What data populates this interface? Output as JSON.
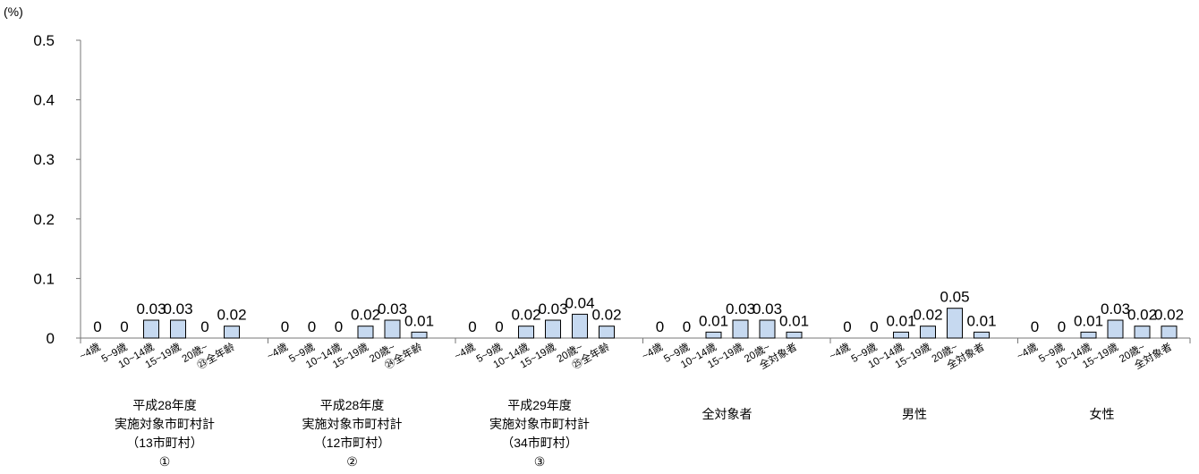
{
  "chart_data": {
    "type": "bar",
    "y_unit": "(%)",
    "ylim": [
      0,
      0.5
    ],
    "yticks": [
      "0",
      "0.1",
      "0.2",
      "0.3",
      "0.4",
      "0.5"
    ],
    "grid": false,
    "legend": "none",
    "bar_color": "#c6d9f0",
    "groups": [
      {
        "label_lines": [
          "平成28年度",
          "実施対象市町村計",
          "（13市町村）",
          "①"
        ],
        "categories": [
          "~4歳",
          "5~9歳",
          "10~14歳",
          "15~19歳",
          "20歳~",
          "㉓全年齢"
        ],
        "values": [
          0,
          0,
          0.03,
          0.03,
          0,
          0.02
        ],
        "labels": [
          "0",
          "0",
          "0.03",
          "0.03",
          "0",
          "0.02"
        ]
      },
      {
        "label_lines": [
          "平成28年度",
          "実施対象市町村計",
          "（12市町村）",
          "②"
        ],
        "categories": [
          "~4歳",
          "5~9歳",
          "10~14歳",
          "15~19歳",
          "20歳~",
          "㉔全年齢"
        ],
        "values": [
          0,
          0,
          0,
          0.02,
          0.03,
          0.01
        ],
        "labels": [
          "0",
          "0",
          "0",
          "0.02",
          "0.03",
          "0.01"
        ]
      },
      {
        "label_lines": [
          "平成29年度",
          "実施対象市町村計",
          "（34市町村）",
          "③"
        ],
        "categories": [
          "~4歳",
          "5~9歳",
          "10~14歳",
          "15~19歳",
          "20歳~",
          "㉕全年齢"
        ],
        "values": [
          0,
          0,
          0.02,
          0.03,
          0.04,
          0.02
        ],
        "labels": [
          "0",
          "0",
          "0.02",
          "0.03",
          "0.04",
          "0.02"
        ]
      },
      {
        "label_lines": [
          "全対象者"
        ],
        "categories": [
          "~4歳",
          "5~9歳",
          "10~14歳",
          "15~19歳",
          "20歳~",
          "全対象者"
        ],
        "values": [
          0,
          0,
          0.01,
          0.03,
          0.03,
          0.01
        ],
        "labels": [
          "0",
          "0",
          "0.01",
          "0.03",
          "0.03",
          "0.01"
        ]
      },
      {
        "label_lines": [
          "男性"
        ],
        "categories": [
          "~4歳",
          "5~9歳",
          "10~14歳",
          "15~19歳",
          "20歳~",
          "全対象者"
        ],
        "values": [
          0,
          0,
          0.01,
          0.02,
          0.05,
          0.01
        ],
        "labels": [
          "0",
          "0",
          "0.01",
          "0.02",
          "0.05",
          "0.01"
        ]
      },
      {
        "label_lines": [
          "女性"
        ],
        "categories": [
          "~4歳",
          "5~9歳",
          "10~14歳",
          "15~19歳",
          "20歳~",
          "全対象者"
        ],
        "values": [
          0,
          0,
          0.01,
          0.03,
          0.02,
          0.02
        ],
        "labels": [
          "0",
          "0",
          "0.01",
          "0.03",
          "0.02",
          "0.02"
        ]
      }
    ]
  }
}
